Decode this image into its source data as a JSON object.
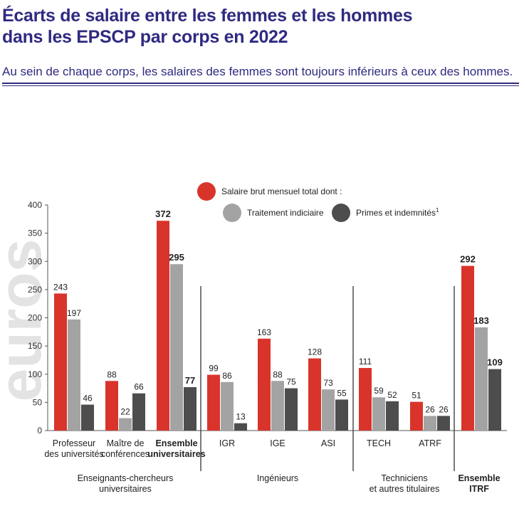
{
  "header": {
    "title_line1": "Écarts de salaire entre les femmes et les hommes",
    "title_line2": "dans les EPSCP par corps en 2022",
    "subtitle": "Au sein de chaque corps, les salaires des femmes sont toujours inférieurs à ceux des hommes."
  },
  "colors": {
    "red": "#d9342b",
    "light_gray": "#a3a3a3",
    "dark_gray": "#4d4d4d",
    "title": "#2f2a80",
    "watermark": "#e3e3e3"
  },
  "chart_data": {
    "type": "bar",
    "title": "Écarts de salaire entre les femmes et les hommes dans les EPSCP par corps en 2022",
    "ylabel": "euros",
    "ylim": [
      0,
      400
    ],
    "yticks": [
      "0",
      "50",
      "100",
      "150",
      "200",
      "250",
      "300",
      "350",
      "400"
    ],
    "legend": [
      {
        "label": "Salaire brut mensuel total dont :",
        "color": "red"
      },
      {
        "label": "Traitement indiciaire",
        "color": "light_gray"
      },
      {
        "label": "Primes et indemnités",
        "sup": "1",
        "color": "dark_gray"
      }
    ],
    "series_names": [
      "Salaire brut mensuel total",
      "Traitement indiciaire",
      "Primes et indemnités"
    ],
    "categories": [
      {
        "label": [
          "Professeur",
          "des universités"
        ],
        "bold": false,
        "values": [
          243,
          197,
          46
        ]
      },
      {
        "label": [
          "Maître de",
          "conférences"
        ],
        "bold": false,
        "values": [
          88,
          22,
          66
        ]
      },
      {
        "label": [
          "Ensemble",
          "universitaires"
        ],
        "bold": true,
        "values": [
          372,
          295,
          77
        ]
      },
      {
        "label": [
          "IGR"
        ],
        "bold": false,
        "values": [
          99,
          86,
          13
        ]
      },
      {
        "label": [
          "IGE"
        ],
        "bold": false,
        "values": [
          163,
          88,
          75
        ]
      },
      {
        "label": [
          "ASI"
        ],
        "bold": false,
        "values": [
          128,
          73,
          55
        ]
      },
      {
        "label": [
          "TECH"
        ],
        "bold": false,
        "values": [
          111,
          59,
          52
        ]
      },
      {
        "label": [
          "ATRF"
        ],
        "bold": false,
        "values": [
          51,
          26,
          26
        ]
      },
      {
        "label": [],
        "bold": true,
        "values": [
          292,
          183,
          109
        ]
      }
    ],
    "groups": [
      {
        "label": [
          "Enseignants-chercheurs",
          "universitaires"
        ],
        "bold": false,
        "span": [
          0,
          2
        ]
      },
      {
        "label": [
          "Ingénieurs"
        ],
        "bold": false,
        "span": [
          3,
          5
        ]
      },
      {
        "label": [
          "Techniciens",
          "et autres titulaires"
        ],
        "bold": false,
        "span": [
          6,
          7
        ]
      },
      {
        "label": [
          "Ensemble",
          "ITRF"
        ],
        "bold": true,
        "span": [
          8,
          8
        ]
      }
    ]
  }
}
